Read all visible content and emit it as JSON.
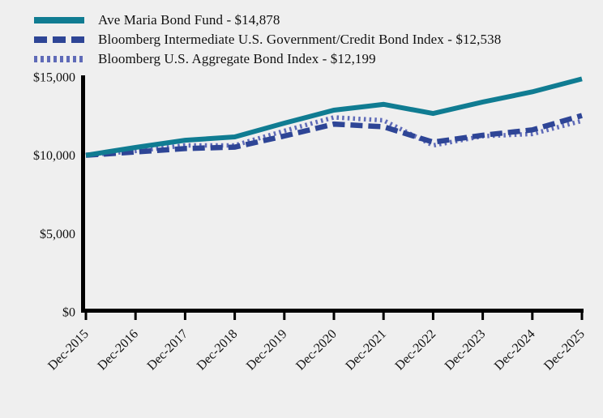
{
  "legend": {
    "items": [
      {
        "label": "Ave Maria Bond Fund - $14,878",
        "color": "#107C92",
        "style": "solid"
      },
      {
        "label": "Bloomberg Intermediate U.S. Government/Credit Bond Index - $12,538",
        "color": "#2E4596",
        "style": "dashed"
      },
      {
        "label": "Bloomberg U.S. Aggregate Bond Index - $12,199",
        "color": "#5F6BB8",
        "style": "dotted"
      }
    ]
  },
  "chart_data": {
    "type": "line",
    "title": "",
    "xlabel": "",
    "ylabel": "",
    "ylim": [
      0,
      15000
    ],
    "grid": false,
    "legend_position": "top-left",
    "categories": [
      "Dec-2015",
      "Dec-2016",
      "Dec-2017",
      "Dec-2018",
      "Dec-2019",
      "Dec-2020",
      "Dec-2021",
      "Dec-2022",
      "Dec-2023",
      "Dec-2024",
      "Dec-2025"
    ],
    "y_ticks": [
      {
        "value": 0,
        "label": "$0"
      },
      {
        "value": 5000,
        "label": "$5,000"
      },
      {
        "value": 10000,
        "label": "$10,000"
      },
      {
        "value": 15000,
        "label": "$15,000"
      }
    ],
    "series": [
      {
        "name": "Ave Maria Bond Fund",
        "final_value": "$14,878",
        "style": "solid",
        "color": "#107C92",
        "values": [
          10000,
          10500,
          10960,
          11170,
          12050,
          12880,
          13250,
          12670,
          13400,
          14050,
          14878
        ]
      },
      {
        "name": "Bloomberg Intermediate U.S. Government/Credit Bond Index",
        "final_value": "$12,538",
        "style": "dashed",
        "color": "#2E4596",
        "values": [
          10000,
          10210,
          10430,
          10520,
          11230,
          11990,
          11820,
          10840,
          11280,
          11620,
          12538
        ]
      },
      {
        "name": "Bloomberg U.S. Aggregate Bond Index",
        "final_value": "$12,199",
        "style": "dotted",
        "color": "#5F6BB8",
        "values": [
          10000,
          10270,
          10630,
          10630,
          11560,
          12420,
          12230,
          10630,
          11220,
          11360,
          12199
        ]
      }
    ],
    "colors": {
      "background": "#EFEFEF",
      "axis": "#000000",
      "text": "#111111"
    }
  }
}
